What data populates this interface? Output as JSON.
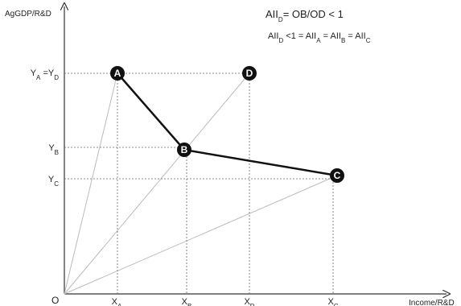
{
  "axes": {
    "y_label": "AgGDP/R&D",
    "x_label": "Income/R&D",
    "origin": "O"
  },
  "formulas": [
    [
      "AII",
      "D",
      "= OB/OD < 1"
    ],
    [
      "AII",
      "D",
      " <1 = AII",
      "A",
      " = AII",
      "B",
      " = AII",
      "C"
    ]
  ],
  "y_labels": [
    [
      "Y",
      "A",
      " =Y",
      "D"
    ],
    [
      "Y",
      "B"
    ],
    [
      "Y",
      "C"
    ]
  ],
  "x_labels": [
    [
      "X",
      "A"
    ],
    [
      "X",
      "B"
    ],
    [
      "X",
      "D"
    ],
    [
      "X",
      "C"
    ]
  ],
  "nodes": [
    {
      "label": "A"
    },
    {
      "label": "B"
    },
    {
      "label": "C"
    },
    {
      "label": "D"
    }
  ]
}
